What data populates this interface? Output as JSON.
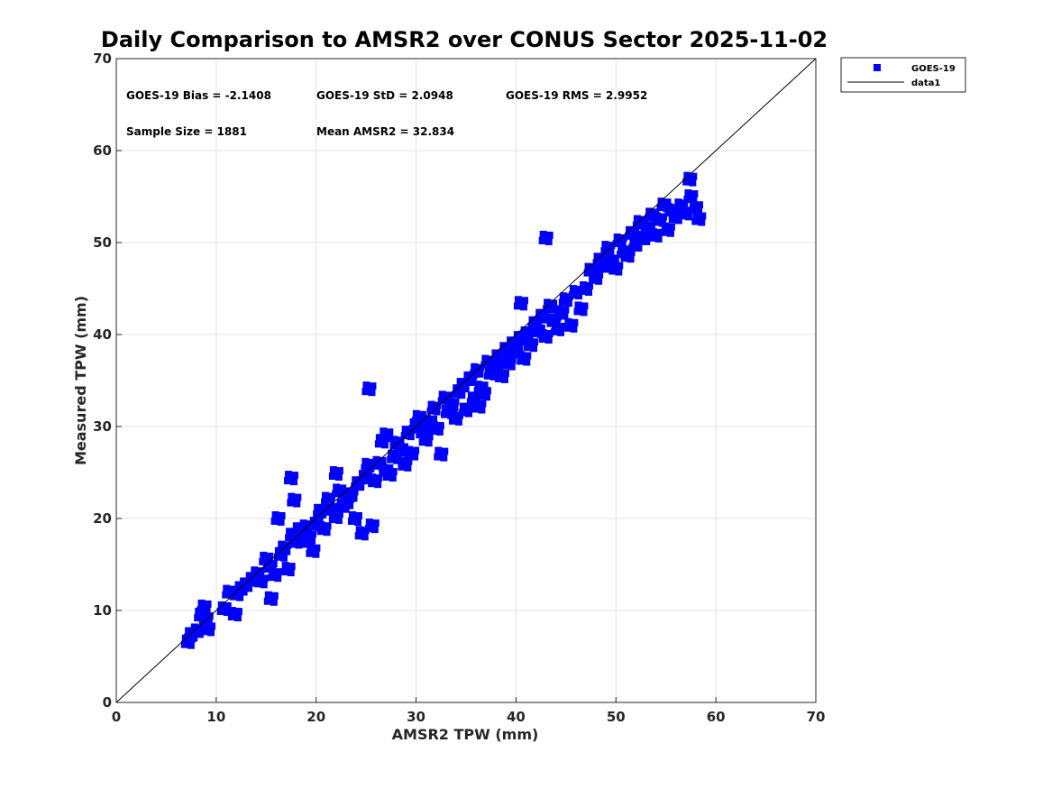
{
  "chart_data": {
    "type": "scatter",
    "title": "Daily Comparison to AMSR2 over CONUS Sector 2025-11-02",
    "xlabel": "AMSR2 TPW (mm)",
    "ylabel": "Measured TPW (mm)",
    "xlim": [
      0,
      70
    ],
    "ylim": [
      0,
      70
    ],
    "xticks": [
      "0",
      "10",
      "20",
      "30",
      "40",
      "50",
      "60",
      "70"
    ],
    "yticks": [
      "0",
      "10",
      "20",
      "30",
      "40",
      "50",
      "60",
      "70"
    ],
    "grid": true,
    "colors": {
      "series": "#0000ff",
      "line": "#000000",
      "grid": "#e3e3e3"
    },
    "stats": {
      "bias": "GOES-19 Bias = -2.1408",
      "std": "GOES-19 StD = 2.0948",
      "rms": "GOES-19 RMS = 2.9952",
      "sample": "Sample Size = 1881",
      "mean": "Mean AMSR2 = 32.834"
    },
    "legend": {
      "position": "outside-top-right",
      "entries": [
        {
          "label": "GOES-19",
          "marker": "square"
        },
        {
          "label": "data1",
          "marker": "line"
        }
      ]
    },
    "series": [
      {
        "name": "GOES-19",
        "marker": "square",
        "x": [
          7.2,
          7.5,
          8.1,
          8.5,
          8.8,
          9.0,
          9.2,
          10.8,
          11.3,
          11.9,
          12.1,
          12.5,
          13.0,
          13.6,
          14.1,
          14.5,
          15.0,
          15.4,
          15.9,
          16.2,
          16.5,
          16.8,
          17.2,
          17.6,
          17.8,
          18.0,
          18.3,
          18.6,
          19.0,
          19.3,
          19.7,
          20.0,
          20.4,
          20.8,
          21.2,
          21.6,
          22.0,
          22.3,
          22.7,
          23.1,
          23.5,
          23.9,
          24.2,
          24.6,
          24.9,
          25.2,
          25.6,
          25.9,
          26.3,
          26.6,
          27.0,
          27.4,
          27.8,
          28.1,
          28.5,
          28.9,
          29.2,
          29.6,
          30.0,
          30.3,
          30.7,
          31.0,
          31.4,
          31.8,
          32.1,
          32.5,
          32.9,
          33.2,
          33.6,
          34.0,
          34.3,
          34.7,
          35.0,
          35.4,
          35.8,
          36.1,
          36.5,
          36.8,
          37.2,
          37.5,
          37.9,
          38.2,
          38.6,
          39.0,
          39.3,
          39.7,
          40.0,
          40.4,
          40.8,
          41.1,
          41.5,
          41.9,
          42.2,
          42.6,
          43.0,
          43.4,
          43.8,
          44.2,
          44.6,
          45.0,
          45.5,
          46.0,
          46.5,
          47.0,
          47.5,
          48.0,
          48.4,
          48.8,
          49.2,
          49.6,
          50.0,
          50.4,
          50.8,
          51.2,
          51.6,
          52.0,
          52.4,
          52.8,
          53.2,
          53.6,
          54.0,
          54.4,
          54.8,
          55.2,
          55.6,
          56.0,
          56.5,
          57.0,
          57.5,
          58.0,
          58.3,
          57.4,
          36.3,
          25.3,
          17.5,
          15.5,
          40.5,
          43.0,
          27.0,
          22.0
        ],
        "y": [
          6.6,
          7.4,
          7.8,
          9.5,
          10.4,
          9.1,
          8.0,
          10.2,
          12.0,
          9.6,
          11.8,
          12.4,
          12.8,
          13.4,
          14.0,
          13.2,
          15.6,
          14.8,
          13.9,
          20.0,
          16.1,
          16.8,
          14.5,
          18.2,
          22.0,
          17.5,
          18.8,
          17.6,
          19.1,
          18.0,
          16.5,
          19.4,
          20.8,
          18.9,
          22.1,
          21.0,
          20.2,
          23.0,
          21.4,
          21.8,
          22.6,
          20.0,
          23.8,
          18.4,
          24.5,
          25.8,
          19.2,
          24.1,
          26.0,
          28.4,
          25.2,
          24.8,
          26.7,
          28.2,
          27.5,
          25.9,
          29.3,
          27.1,
          30.1,
          31.0,
          29.4,
          28.6,
          30.5,
          32.0,
          29.8,
          27.0,
          33.1,
          31.6,
          32.4,
          30.9,
          33.8,
          34.5,
          31.8,
          35.2,
          33.0,
          36.1,
          34.2,
          33.6,
          37.0,
          35.8,
          36.4,
          37.6,
          35.5,
          38.4,
          36.9,
          39.0,
          38.2,
          39.6,
          37.4,
          40.1,
          38.9,
          41.2,
          40.4,
          42.0,
          39.8,
          43.1,
          41.5,
          40.6,
          42.4,
          43.8,
          41.0,
          44.6,
          42.8,
          45.0,
          47.0,
          46.2,
          48.1,
          47.5,
          49.4,
          48.0,
          47.2,
          50.2,
          49.0,
          48.6,
          51.0,
          49.8,
          52.2,
          50.5,
          51.6,
          53.0,
          50.8,
          52.5,
          54.1,
          51.4,
          53.5,
          52.8,
          54.0,
          53.2,
          55.0,
          53.8,
          52.6,
          56.9,
          32.2,
          34.1,
          24.4,
          11.3,
          43.4,
          50.5,
          29.1,
          24.9
        ]
      },
      {
        "name": "data1",
        "type": "line",
        "x": [
          0,
          70
        ],
        "y": [
          0,
          70
        ]
      }
    ]
  }
}
